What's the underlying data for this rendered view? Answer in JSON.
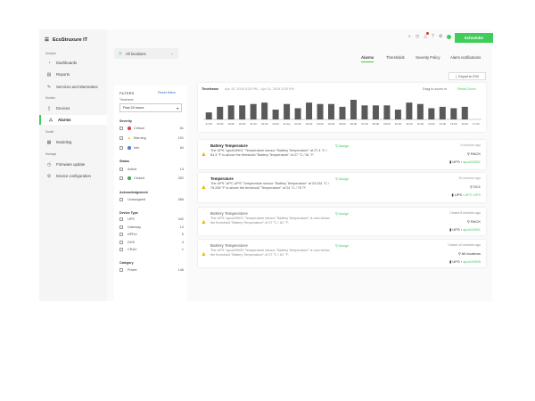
{
  "app": {
    "name": "EcoStruxure IT",
    "brand_button": "Schneider",
    "accent": "#3dcd58"
  },
  "sidebar": {
    "sections": [
      {
        "label": "Analyze",
        "items": [
          {
            "label": "Dashboards",
            "icon": "dashboard-icon"
          },
          {
            "label": "Reports",
            "icon": "report-icon"
          },
          {
            "label": "Services and Warranties",
            "icon": "services-icon"
          }
        ]
      },
      {
        "label": "Monitor",
        "items": [
          {
            "label": "Devices",
            "icon": "devices-icon"
          },
          {
            "label": "Alarms",
            "icon": "alarm-icon",
            "active": true
          }
        ]
      },
      {
        "label": "Model",
        "items": [
          {
            "label": "Modeling",
            "icon": "modeling-icon"
          }
        ]
      },
      {
        "label": "Manage",
        "items": [
          {
            "label": "Firmware update",
            "icon": "firmware-icon"
          },
          {
            "label": "Device configuration",
            "icon": "gear-icon"
          }
        ]
      }
    ]
  },
  "location": {
    "value": "All locations"
  },
  "tabs": [
    {
      "label": "Alarms",
      "active": true
    },
    {
      "label": "Thresholds"
    },
    {
      "label": "Severity Policy"
    },
    {
      "label": "Alarm notifications"
    }
  ],
  "export_label": "Export to CSV",
  "filters": {
    "title": "FILTERS",
    "reset": "Reset filters",
    "timeframe_label": "Timeframe",
    "timeframe_value": "Past 24 hours",
    "severity": {
      "label": "Severity",
      "items": [
        {
          "label": "Critical",
          "count": "81",
          "color": "#d0342c"
        },
        {
          "label": "Warning",
          "count": "191",
          "color": "#f2b300"
        },
        {
          "label": "Info",
          "count": "84",
          "color": "#3a74c9"
        }
      ]
    },
    "status": {
      "label": "Status",
      "items": [
        {
          "label": "Active",
          "count": "14"
        },
        {
          "label": "Closed",
          "count": "352"
        }
      ]
    },
    "ack": {
      "label": "Acknowledgement",
      "items": [
        {
          "label": "Unassigned",
          "count": "366"
        }
      ]
    },
    "device_type": {
      "label": "Device Type",
      "items": [
        {
          "label": "UPS",
          "count": "342"
        },
        {
          "label": "Gateway",
          "count": "14"
        },
        {
          "label": "NPDU",
          "count": "5"
        },
        {
          "label": "DHS",
          "count": "4"
        },
        {
          "label": "CRAC",
          "count": "1"
        }
      ]
    },
    "category": {
      "label": "Category",
      "items": [
        {
          "label": "Power",
          "count": "146"
        }
      ]
    }
  },
  "chart_header": {
    "label": "Timeframe",
    "range": "Apr 10, 2024 5:25 PM  –  Apr 11, 2024 5:25 PM",
    "hint": "Drag to zoom in",
    "reset": "Reset Zoom"
  },
  "chart_data": {
    "type": "bar",
    "categories": [
      "17:00",
      "18:00",
      "19:00",
      "20:00",
      "21:00",
      "22:00",
      "23:00",
      "11 Apr",
      "01:00",
      "02:00",
      "03:00",
      "04:00",
      "05:00",
      "06:00",
      "07:00",
      "08:00",
      "09:00",
      "10:00",
      "11:00",
      "12:00",
      "13:00",
      "14:00",
      "15:00",
      "16:00",
      "17:00"
    ],
    "values": [
      5,
      9,
      10,
      10,
      11,
      12,
      7,
      11,
      8,
      12,
      11,
      11,
      9,
      14,
      10,
      10,
      10,
      7,
      12,
      11,
      8,
      9,
      8,
      9,
      0
    ],
    "color": "#5a5a5a",
    "grid": false
  },
  "alarms": [
    {
      "title": "Battery Temperature",
      "desc": "The UPS \"apc#19901\" Temperature sensor \"Battery Temperature\" at 27.4 °C / 81.3 °F is above the threshold \"Battery Temperature\" of 27 °C / 81 °F.",
      "assign": "Assign",
      "time": "3 minutes ago",
      "location": "RACK",
      "device_type": "UPS",
      "device": "apc#19901",
      "closed": false
    },
    {
      "title": "Temperature",
      "desc": "The UPS \"APC UPS\" Temperature sensor \"Battery Temperature\" at 24.031 °C / 75.256 °F is above the threshold \"Temperature\" of 24 °C / 75 °F.",
      "assign": "Assign",
      "time": "26 minutes ago",
      "location": "DC1",
      "device_type": "UPS",
      "device": "APC UPS",
      "closed": false
    },
    {
      "title": "Battery Temperature",
      "desc": "The UPS \"apc#19901\" Temperature sensor \"Battery Temperature\" is now below the threshold \"Battery Temperature\" of 27 °C / 81 °F.",
      "assign": "Assign",
      "time": "Closed 8 minutes ago",
      "location": "RACK",
      "device_type": "UPS",
      "device": "apc#19901",
      "closed": true
    },
    {
      "title": "Battery Temperature",
      "desc": "The UPS \"apc#19905\" Temperature sensor \"Battery Temperature\" is now below the threshold \"Battery Temperature\" of 27 °C / 81 °F.",
      "assign": "Assign",
      "time": "Closed 10 minutes ago",
      "location": "All locations",
      "device_type": "UPS",
      "device": "apc#19905",
      "closed": true
    }
  ]
}
